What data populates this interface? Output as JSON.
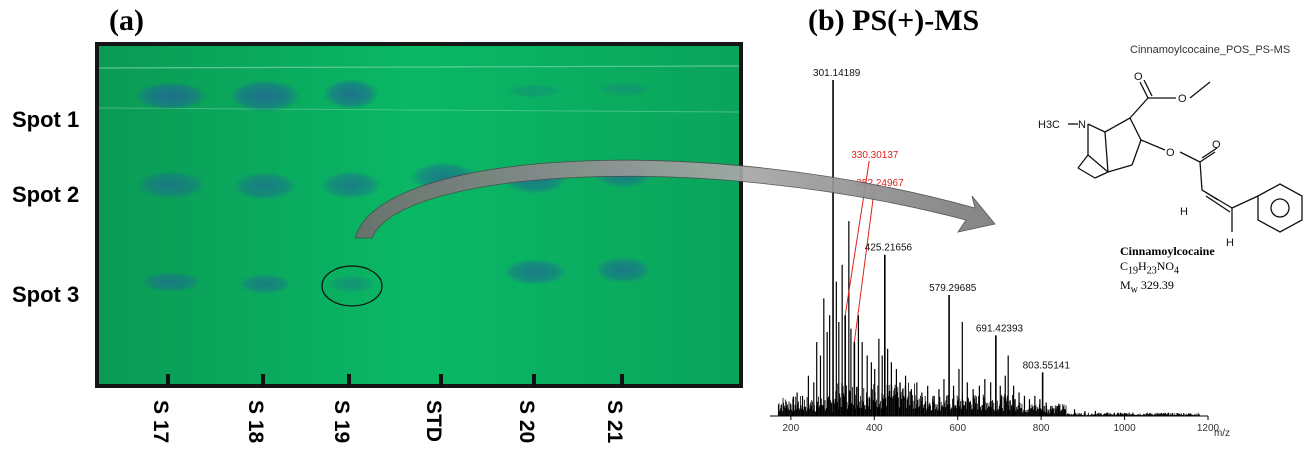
{
  "panel_a": {
    "label": "(a)",
    "spots": [
      "Spot 1",
      "Spot 2",
      "Spot 3"
    ],
    "lanes": [
      "S 17",
      "S 18",
      "S 19",
      "STD",
      "S 20",
      "S 21"
    ]
  },
  "panel_b": {
    "label": "(b) PS(+)-MS",
    "spectrum_title": "Cinnamoylcocaine_POS_PS-MS",
    "compound": {
      "name": "Cinnamoylcocaine",
      "formula_c": "C",
      "formula_c_sub": "19",
      "formula_h": "H",
      "formula_h_sub": "23",
      "formula_rest": "NO",
      "formula_o_sub": "4",
      "mw_prefix": "M",
      "mw_sub": "w",
      "mw_value": "329.39",
      "atom_n": "N",
      "atom_h3c": "H3C",
      "atom_o": "O",
      "atom_h": "H"
    }
  },
  "colors": {
    "plate_green": "#08b062",
    "spot_blue": "#1f6a92",
    "highlight_red": "#e0221a",
    "arrow_gray": "#8a8a8a"
  },
  "chart_data": {
    "type": "bar",
    "title": "Cinnamoylcocaine_POS_PS-MS",
    "xlabel": "m/z",
    "xlim": [
      150,
      1200
    ],
    "ylim": [
      0,
      100
    ],
    "x_ticks": [
      200,
      400,
      600,
      800,
      1000,
      1200
    ],
    "labeled_peaks": [
      {
        "mz": 301.14189,
        "label": "301.14189",
        "intensity": 100,
        "highlight": false
      },
      {
        "mz": 330.30137,
        "label": "330.30137",
        "intensity": 30,
        "highlight": true
      },
      {
        "mz": 352.24967,
        "label": "352.24967",
        "intensity": 22,
        "highlight": true
      },
      {
        "mz": 425.21656,
        "label": "425.21656",
        "intensity": 48,
        "highlight": false
      },
      {
        "mz": 579.29685,
        "label": "579.29685",
        "intensity": 36,
        "highlight": false
      },
      {
        "mz": 691.42393,
        "label": "691.42393",
        "intensity": 24,
        "highlight": false
      },
      {
        "mz": 803.55141,
        "label": "803.55141",
        "intensity": 13,
        "highlight": false
      }
    ],
    "other_peaks": [
      [
        190,
        3
      ],
      [
        205,
        5
      ],
      [
        215,
        7
      ],
      [
        228,
        6
      ],
      [
        242,
        12
      ],
      [
        255,
        10
      ],
      [
        262,
        22
      ],
      [
        271,
        18
      ],
      [
        279,
        35
      ],
      [
        287,
        25
      ],
      [
        293,
        30
      ],
      [
        309,
        40
      ],
      [
        315,
        28
      ],
      [
        323,
        45
      ],
      [
        339,
        58
      ],
      [
        344,
        26
      ],
      [
        362,
        30
      ],
      [
        371,
        22
      ],
      [
        383,
        18
      ],
      [
        393,
        16
      ],
      [
        401,
        14
      ],
      [
        411,
        23
      ],
      [
        419,
        18
      ],
      [
        432,
        20
      ],
      [
        441,
        16
      ],
      [
        453,
        14
      ],
      [
        462,
        10
      ],
      [
        475,
        12
      ],
      [
        489,
        8
      ],
      [
        502,
        10
      ],
      [
        514,
        7
      ],
      [
        528,
        9
      ],
      [
        541,
        6
      ],
      [
        555,
        8
      ],
      [
        567,
        11
      ],
      [
        590,
        9
      ],
      [
        603,
        14
      ],
      [
        611,
        28
      ],
      [
        623,
        10
      ],
      [
        637,
        8
      ],
      [
        652,
        9
      ],
      [
        665,
        11
      ],
      [
        679,
        10
      ],
      [
        702,
        9
      ],
      [
        714,
        12
      ],
      [
        721,
        18
      ],
      [
        734,
        9
      ],
      [
        747,
        7
      ],
      [
        760,
        6
      ],
      [
        772,
        5
      ],
      [
        785,
        6
      ],
      [
        797,
        5
      ],
      [
        812,
        4
      ],
      [
        826,
        3
      ],
      [
        841,
        3
      ],
      [
        856,
        2
      ],
      [
        880,
        2
      ],
      [
        905,
        1.5
      ],
      [
        930,
        1.5
      ],
      [
        960,
        1
      ],
      [
        990,
        1
      ],
      [
        1020,
        1
      ],
      [
        1060,
        0.8
      ],
      [
        1100,
        0.6
      ]
    ]
  }
}
